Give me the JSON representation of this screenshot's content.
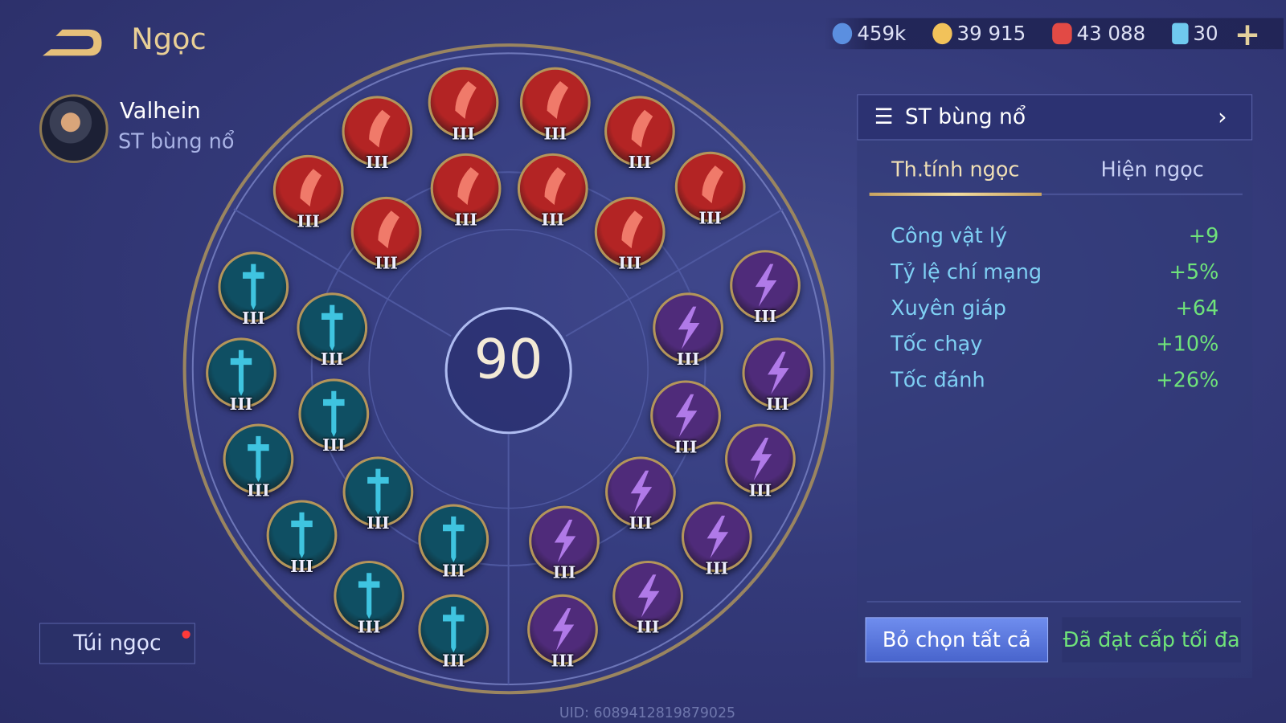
{
  "header": {
    "title": "Ngọc",
    "back_icon": "back-arrow-icon"
  },
  "hero": {
    "name": "Valhein",
    "preset": "ST bùng nổ"
  },
  "currency": [
    {
      "icon": "blue-rune-coin-icon",
      "value": "459k",
      "color": "#5b8fe0"
    },
    {
      "icon": "gold-coin-icon",
      "value": "39 915",
      "color": "#f2c25a"
    },
    {
      "icon": "red-gem-icon",
      "value": "43 088",
      "color": "#e24a45"
    },
    {
      "icon": "card-icon",
      "value": "30",
      "color": "#6fc9ef"
    }
  ],
  "add_icon": "plus-icon",
  "board": {
    "level": "90",
    "colors": {
      "red": "#b32424",
      "teal": "#0f4f63",
      "purple": "#4f2b7a"
    },
    "runes": {
      "red": [
        "III",
        "III",
        "III",
        "III",
        "III",
        "III",
        "III",
        "III",
        "III",
        "III"
      ],
      "teal": [
        "III",
        "III",
        "III",
        "III",
        "III",
        "III",
        "III",
        "III",
        "III",
        "III"
      ],
      "purple": [
        "III",
        "III",
        "III",
        "III",
        "III",
        "III",
        "III",
        "III",
        "III",
        "III"
      ]
    }
  },
  "bag_button": "Túi ngọc",
  "panel": {
    "preset_name": "ST bùng nổ",
    "tabs": [
      {
        "label": "Th.tính ngọc",
        "active": true
      },
      {
        "label": "Hiện ngọc",
        "active": false
      }
    ],
    "stats": [
      {
        "label": "Công vật lý",
        "value": "+9"
      },
      {
        "label": "Tỷ lệ chí mạng",
        "value": "+5%"
      },
      {
        "label": "Xuyên giáp",
        "value": "+64"
      },
      {
        "label": "Tốc chạy",
        "value": "+10%"
      },
      {
        "label": "Tốc đánh",
        "value": "+26%"
      }
    ],
    "clear_button": "Bỏ chọn tất cả",
    "max_status": "Đã đạt cấp tối đa"
  },
  "uid": "UID: 6089412819879025"
}
